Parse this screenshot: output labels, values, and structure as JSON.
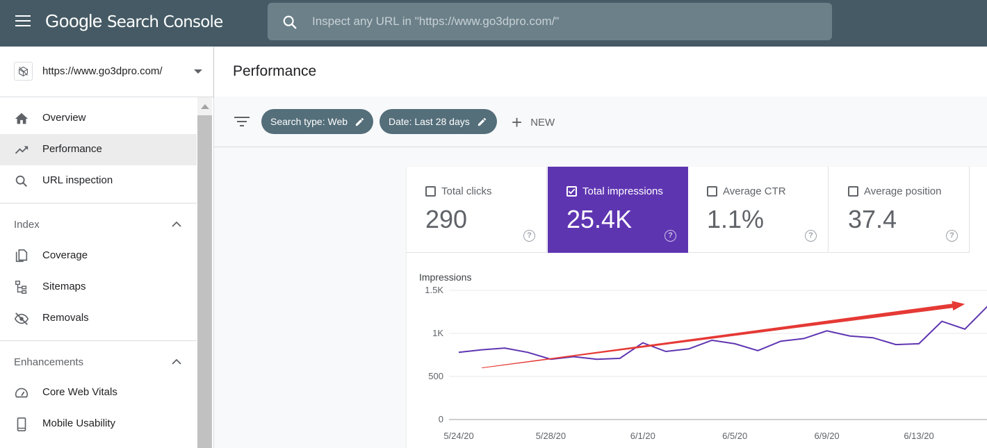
{
  "app": {
    "logo_google": "Google",
    "logo_product": "Search Console"
  },
  "search": {
    "placeholder": "Inspect any URL in \"https://www.go3dpro.com/\""
  },
  "property": {
    "url": "https://www.go3dpro.com/"
  },
  "sidebar": {
    "items": [
      {
        "label": "Overview",
        "icon": "home-icon"
      },
      {
        "label": "Performance",
        "icon": "trending-up-icon",
        "active": true
      },
      {
        "label": "URL inspection",
        "icon": "search-icon"
      }
    ],
    "index": {
      "title": "Index",
      "items": [
        {
          "label": "Coverage",
          "icon": "coverage-icon"
        },
        {
          "label": "Sitemaps",
          "icon": "sitemap-icon"
        },
        {
          "label": "Removals",
          "icon": "eye-off-icon"
        }
      ]
    },
    "enhancements": {
      "title": "Enhancements",
      "items": [
        {
          "label": "Core Web Vitals",
          "icon": "gauge-icon"
        },
        {
          "label": "Mobile Usability",
          "icon": "phone-icon"
        }
      ]
    }
  },
  "page": {
    "title": "Performance"
  },
  "filters": {
    "chips": [
      "Search type: Web",
      "Date: Last 28 days"
    ],
    "new_label": "NEW"
  },
  "metrics": [
    {
      "label": "Total clicks",
      "value": "290",
      "checked": false
    },
    {
      "label": "Total impressions",
      "value": "25.4K",
      "checked": true
    },
    {
      "label": "Average CTR",
      "value": "1.1%",
      "checked": false
    },
    {
      "label": "Average position",
      "value": "37.4",
      "checked": false
    }
  ],
  "colors": {
    "topbar": "#455a64",
    "accent": "#5e35b1",
    "chip": "#546e7a",
    "annotation": "#e53935"
  },
  "chart_data": {
    "type": "line",
    "ylabel": "Impressions",
    "yticks": [
      "1.5K",
      "1K",
      "500",
      "0"
    ],
    "ytick_values": [
      1500,
      1000,
      500,
      0
    ],
    "xticks": [
      "5/24/20",
      "5/28/20",
      "6/1/20",
      "6/5/20",
      "6/9/20",
      "6/13/20"
    ],
    "ylim": [
      0,
      1500
    ],
    "grid": true,
    "series": [
      {
        "color": "#5e35b1",
        "x": [
          "5/24/20",
          "5/25/20",
          "5/26/20",
          "5/27/20",
          "5/28/20",
          "5/29/20",
          "5/30/20",
          "5/31/20",
          "6/1/20",
          "6/2/20",
          "6/3/20",
          "6/4/20",
          "6/5/20",
          "6/6/20",
          "6/7/20",
          "6/8/20",
          "6/9/20",
          "6/10/20",
          "6/11/20",
          "6/12/20",
          "6/13/20",
          "6/14/20",
          "6/15/20",
          "6/16/20"
        ],
        "values": [
          780,
          810,
          830,
          780,
          700,
          730,
          700,
          710,
          890,
          790,
          820,
          920,
          880,
          800,
          910,
          940,
          1030,
          970,
          950,
          870,
          880,
          1140,
          1050,
          1320
        ]
      }
    ],
    "annotation": {
      "type": "arrow",
      "color": "#e53935",
      "from": [
        "5/25/20",
        600
      ],
      "to": [
        "6/15/20",
        1340
      ]
    }
  }
}
